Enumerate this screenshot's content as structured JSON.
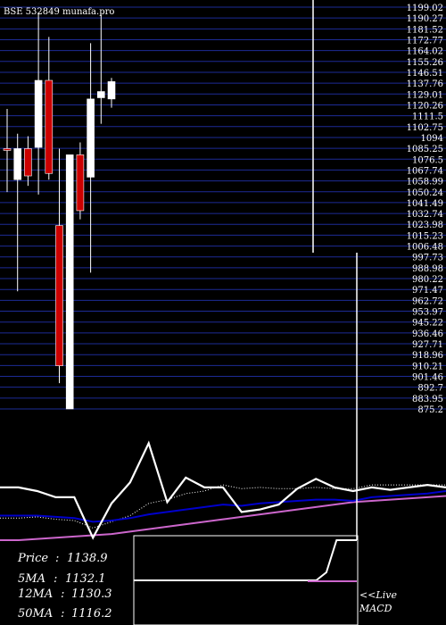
{
  "chart_data": {
    "type": "candlestick",
    "title": "BSE 532849 munafa.pro",
    "ylim": [
      875.2,
      1199.02
    ],
    "y_tick_labels": [
      "1199.02",
      "1190.27",
      "1181.52",
      "1172.77",
      "1164.02",
      "1155.26",
      "1146.51",
      "1137.76",
      "1129.01",
      "1120.26",
      "1111.5",
      "1102.75",
      "1094",
      "1085.25",
      "1076.5",
      "1067.74",
      "1058.99",
      "1050.24",
      "1041.49",
      "1032.74",
      "1023.98",
      "1015.23",
      "1006.48",
      "997.73",
      "988.98",
      "980.22",
      "971.47",
      "962.72",
      "953.97",
      "945.22",
      "936.46",
      "927.71",
      "918.96",
      "910.21",
      "901.46",
      "892.7",
      "883.95",
      "875.2"
    ],
    "candles": [
      {
        "open": 1085,
        "high": 1117,
        "low": 1050,
        "close": 1085,
        "color": "red"
      },
      {
        "open": 1060,
        "high": 1097,
        "low": 970,
        "close": 1085,
        "color": "white"
      },
      {
        "open": 1063,
        "high": 1095,
        "low": 1055,
        "close": 1085,
        "color": "red"
      },
      {
        "open": 1086,
        "high": 1195,
        "low": 1048,
        "close": 1140,
        "color": "white"
      },
      {
        "open": 1140,
        "high": 1175,
        "low": 1060,
        "close": 1065,
        "color": "red"
      },
      {
        "open": 1023,
        "high": 1085,
        "low": 896,
        "close": 910,
        "color": "red"
      },
      {
        "open": 875.2,
        "high": 1080,
        "low": 875.2,
        "close": 1080,
        "color": "white"
      },
      {
        "open": 1080,
        "high": 1090,
        "low": 1028,
        "close": 1035,
        "color": "red"
      },
      {
        "open": 1062,
        "high": 1170,
        "low": 985,
        "close": 1125,
        "color": "white"
      },
      {
        "open": 1126,
        "high": 1193,
        "low": 1105,
        "close": 1131,
        "color": "white"
      },
      {
        "open": 1125,
        "high": 1142,
        "low": 1118,
        "close": 1139,
        "color": "white"
      }
    ],
    "indicator_panel": {
      "price_line": [
        43,
        43,
        40,
        35,
        35,
        2,
        30,
        47,
        79,
        31,
        51,
        43,
        43,
        23,
        25,
        29,
        42,
        50,
        43,
        40,
        43,
        41,
        43,
        45,
        43
      ],
      "ma_blue": [
        20,
        20,
        20,
        19,
        18,
        15,
        16,
        18,
        21,
        23,
        25,
        27,
        29,
        28,
        30,
        31,
        32,
        33,
        33,
        32,
        35,
        36,
        37,
        38,
        40
      ],
      "ma_dotted": [
        18,
        18,
        19,
        17,
        16,
        10,
        15,
        20,
        30,
        33,
        38,
        40,
        45,
        42,
        43,
        42,
        42,
        43,
        42,
        42,
        45,
        45,
        45,
        45,
        45
      ],
      "ma_magenta": [
        0,
        0,
        1,
        2,
        3,
        4,
        5,
        7,
        9,
        11,
        13,
        15,
        17,
        19,
        21,
        23,
        25,
        27,
        29,
        31,
        32,
        33,
        34,
        35,
        36
      ]
    },
    "macd": {
      "label": "MACD",
      "values": [
        0,
        0,
        0,
        0,
        0,
        0,
        0,
        0,
        0,
        0,
        0,
        0,
        0,
        0,
        0,
        0,
        0,
        0,
        0,
        0.2,
        1,
        1,
        1
      ]
    },
    "colors": {
      "background": "#000000",
      "gridline": "#1d2b96",
      "bearish": "#cc0000",
      "bullish": "#ffffff",
      "ma_blue": "#0000cc",
      "ma_magenta": "#cc66cc"
    }
  },
  "info": {
    "price_label": "Price",
    "price_value": "1138.9",
    "ma5_label": "5MA",
    "ma5_value": "1132.1",
    "ma12_label": "12MA",
    "ma12_value": "1130.3",
    "ma50_label": "50MA",
    "ma50_value": "1116.2",
    "live_link": "<<Live"
  }
}
